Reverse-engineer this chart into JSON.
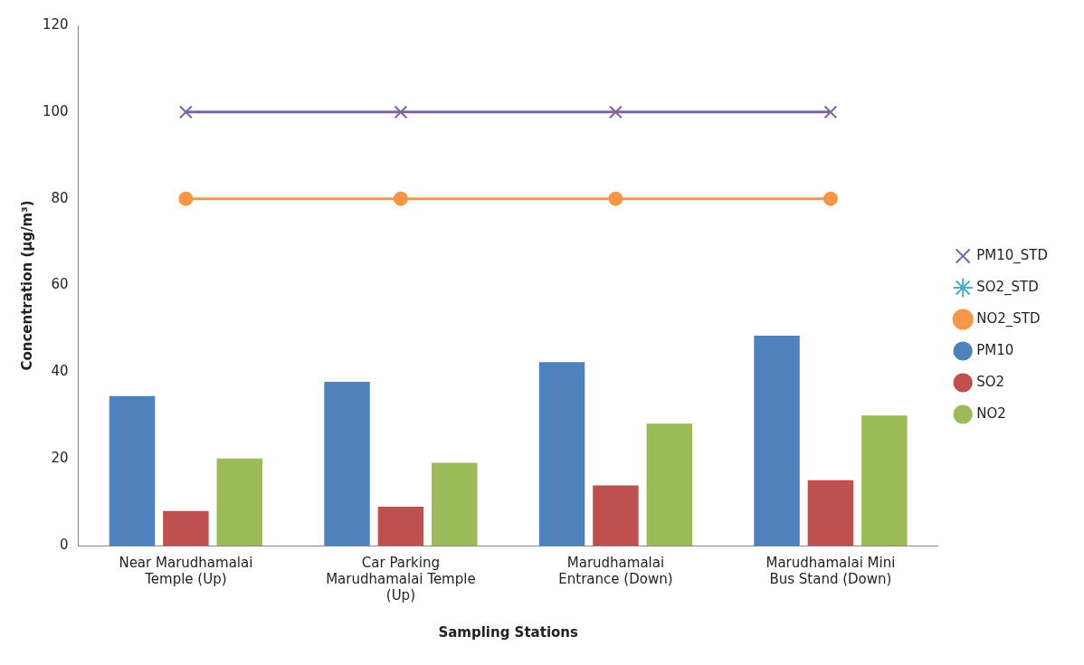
{
  "chart_data": {
    "type": "bar",
    "xlabel": "Sampling Stations",
    "ylabel": "Concentration (µg/m³)",
    "categories": [
      "Near Marudhamalai Temple (Up)",
      "Car Parking Marudhamalai Temple (Up)",
      "Marudhamalai Entrance (Down)",
      "Marudhamalai Mini Bus Stand (Down)"
    ],
    "series": [
      {
        "name": "PM10",
        "color": "#4f81bd",
        "values": [
          34.5,
          37.8,
          42.3,
          48.4
        ]
      },
      {
        "name": "SO2",
        "color": "#c0504d",
        "values": [
          8.0,
          9.0,
          13.9,
          15.1
        ]
      },
      {
        "name": "NO2",
        "color": "#9bbb59",
        "values": [
          20.1,
          19.1,
          28.1,
          30.0
        ]
      },
      {
        "name": "PM10_STD",
        "type": "line",
        "marker": "cross",
        "color": "#8064a2",
        "values": [
          100,
          100,
          100,
          100
        ]
      },
      {
        "name": "SO2_STD",
        "type": "line",
        "marker": "star",
        "color": "#4bacc6",
        "values": [
          null,
          null,
          null,
          null
        ]
      },
      {
        "name": "NO2_STD",
        "type": "line",
        "marker": "circle",
        "color": "#f79646",
        "values": [
          80,
          80,
          80,
          80
        ]
      }
    ],
    "ylim": [
      0,
      120
    ],
    "yticks": [
      0,
      20,
      40,
      60,
      80,
      100,
      120
    ],
    "grid": false,
    "legend": "right"
  }
}
